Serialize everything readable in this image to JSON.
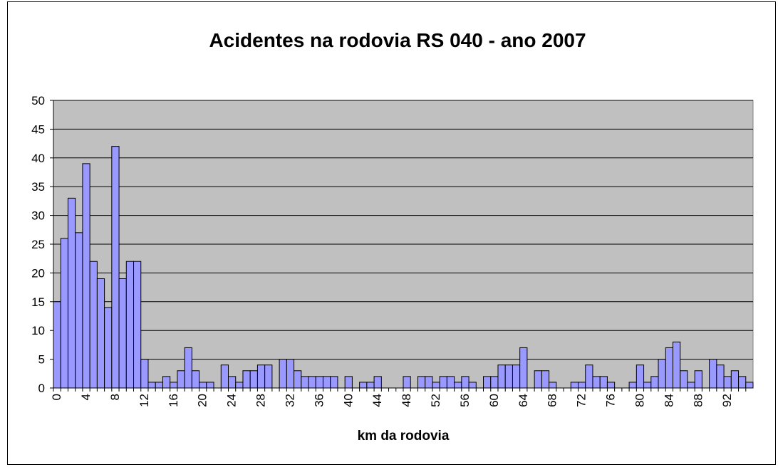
{
  "chart_data": {
    "type": "bar",
    "title": "Acidentes na rodovia RS 040 - ano 2007",
    "x_label": "km da rodovia",
    "categories": [
      0,
      null,
      null,
      null,
      4,
      null,
      null,
      null,
      8,
      null,
      null,
      null,
      12,
      null,
      null,
      null,
      16,
      null,
      null,
      null,
      20,
      null,
      null,
      null,
      24,
      null,
      null,
      null,
      28,
      null,
      null,
      null,
      32,
      null,
      null,
      null,
      36,
      null,
      null,
      null,
      40,
      null,
      null,
      null,
      44,
      null,
      null,
      null,
      48,
      null,
      null,
      null,
      52,
      null,
      null,
      null,
      56,
      null,
      null,
      null,
      60,
      null,
      null,
      null,
      64,
      null,
      null,
      null,
      68,
      null,
      null,
      null,
      72,
      null,
      null,
      null,
      76,
      null,
      null,
      null,
      80,
      null,
      null,
      null,
      84,
      null,
      null,
      null,
      88,
      null,
      null,
      null,
      92,
      null,
      null,
      null
    ],
    "values": [
      15,
      26,
      33,
      27,
      39,
      22,
      19,
      14,
      42,
      19,
      22,
      22,
      5,
      1,
      1,
      2,
      1,
      3,
      7,
      3,
      1,
      1,
      0,
      4,
      2,
      1,
      3,
      3,
      4,
      4,
      0,
      5,
      5,
      3,
      2,
      2,
      2,
      2,
      2,
      0,
      2,
      0,
      1,
      1,
      2,
      0,
      0,
      0,
      2,
      0,
      2,
      2,
      1,
      2,
      2,
      1,
      2,
      1,
      0,
      2,
      2,
      4,
      4,
      4,
      7,
      0,
      3,
      3,
      1,
      0,
      0,
      1,
      1,
      4,
      2,
      2,
      1,
      0,
      0,
      1,
      4,
      1,
      2,
      5,
      7,
      8,
      3,
      1,
      3,
      0,
      5,
      4,
      2,
      3,
      2,
      1
    ],
    "color": "#9999ff",
    "plot_background": "#c0c0c0",
    "ylim": [
      0,
      50
    ],
    "yticks": [
      0,
      5,
      10,
      15,
      20,
      25,
      30,
      35,
      40,
      45,
      50
    ],
    "grid": true
  }
}
